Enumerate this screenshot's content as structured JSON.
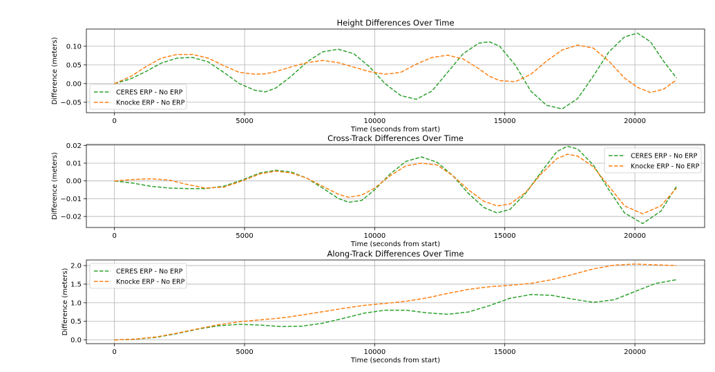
{
  "chart_data": [
    {
      "type": "line",
      "title": "Height Differences Over Time",
      "xlabel": "Time (seconds from start)",
      "ylabel": "Difference (meters)",
      "xlim": [
        -1080,
        22680
      ],
      "ylim": [
        -0.078,
        0.146
      ],
      "xticks": [
        0,
        5000,
        10000,
        15000,
        20000
      ],
      "xtick_labels": [
        "0",
        "5000",
        "10000",
        "15000",
        "20000"
      ],
      "yticks": [
        -0.05,
        0.0,
        0.05,
        0.1
      ],
      "ytick_labels": [
        "−0.05",
        "0.00",
        "0.05",
        "0.10"
      ],
      "grid": true,
      "legend_position": "lower-left",
      "x": [
        0,
        600,
        1200,
        1800,
        2400,
        3000,
        3600,
        4200,
        4800,
        5400,
        5800,
        6200,
        6800,
        7400,
        8000,
        8600,
        9200,
        9800,
        10400,
        11000,
        11600,
        12200,
        12800,
        13400,
        14000,
        14400,
        14800,
        15400,
        16000,
        16600,
        17200,
        17800,
        18400,
        19000,
        19600,
        20100,
        20600,
        21100,
        21600
      ],
      "series": [
        {
          "name": "CERES ERP - No ERP",
          "color": "#2ca02c",
          "values": [
            0.0,
            0.012,
            0.032,
            0.055,
            0.068,
            0.07,
            0.058,
            0.03,
            0.0,
            -0.018,
            -0.022,
            -0.012,
            0.02,
            0.058,
            0.085,
            0.092,
            0.08,
            0.045,
            0.0,
            -0.032,
            -0.042,
            -0.02,
            0.03,
            0.08,
            0.108,
            0.112,
            0.1,
            0.05,
            -0.02,
            -0.058,
            -0.068,
            -0.04,
            0.02,
            0.085,
            0.125,
            0.135,
            0.112,
            0.06,
            0.015
          ]
        },
        {
          "name": "Knocke ERP - No ERP",
          "color": "#ff7f0e",
          "values": [
            0.0,
            0.018,
            0.045,
            0.068,
            0.078,
            0.078,
            0.068,
            0.048,
            0.03,
            0.025,
            0.026,
            0.032,
            0.045,
            0.056,
            0.062,
            0.056,
            0.044,
            0.032,
            0.025,
            0.03,
            0.052,
            0.07,
            0.076,
            0.066,
            0.04,
            0.02,
            0.008,
            0.005,
            0.025,
            0.06,
            0.09,
            0.103,
            0.095,
            0.06,
            0.015,
            -0.01,
            -0.024,
            -0.015,
            0.01
          ]
        }
      ]
    },
    {
      "type": "line",
      "title": "Cross-Track Differences Over Time",
      "xlabel": "Time (seconds from start)",
      "ylabel": "Difference (meters)",
      "xlim": [
        -1080,
        22680
      ],
      "ylim": [
        -0.0262,
        0.0205
      ],
      "xticks": [
        0,
        5000,
        10000,
        15000,
        20000
      ],
      "xtick_labels": [
        "0",
        "5000",
        "10000",
        "15000",
        "20000"
      ],
      "yticks": [
        -0.02,
        -0.01,
        0.0,
        0.01,
        0.02
      ],
      "ytick_labels": [
        "−0.02",
        "−0.01",
        "0.00",
        "0.01",
        "0.02"
      ],
      "grid": true,
      "legend_position": "upper-right",
      "x": [
        0,
        700,
        1400,
        2100,
        2800,
        3500,
        4200,
        4900,
        5600,
        6200,
        6800,
        7400,
        8000,
        8600,
        9000,
        9500,
        10000,
        10600,
        11200,
        11800,
        12400,
        13000,
        13600,
        14200,
        14700,
        15200,
        15800,
        16400,
        17000,
        17400,
        17800,
        18400,
        19000,
        19600,
        20300,
        21000,
        21600
      ],
      "series": [
        {
          "name": "CERES ERP - No ERP",
          "color": "#2ca02c",
          "values": [
            0.0,
            -0.0012,
            -0.003,
            -0.004,
            -0.0043,
            -0.0043,
            -0.003,
            0.0005,
            0.0045,
            0.006,
            0.005,
            0.0015,
            -0.004,
            -0.0098,
            -0.012,
            -0.011,
            -0.005,
            0.004,
            0.011,
            0.0135,
            0.0105,
            0.003,
            -0.007,
            -0.015,
            -0.018,
            -0.016,
            -0.007,
            0.005,
            0.0165,
            0.0195,
            0.018,
            0.009,
            -0.005,
            -0.018,
            -0.024,
            -0.017,
            -0.003
          ]
        },
        {
          "name": "Knocke ERP - No ERP",
          "color": "#ff7f0e",
          "values": [
            0.0,
            0.0008,
            0.0012,
            0.0005,
            -0.002,
            -0.004,
            -0.0035,
            0.0,
            0.004,
            0.0055,
            0.0045,
            0.0015,
            -0.003,
            -0.0075,
            -0.0092,
            -0.008,
            -0.004,
            0.003,
            0.0085,
            0.01,
            0.009,
            0.003,
            -0.005,
            -0.0115,
            -0.014,
            -0.013,
            -0.0065,
            0.004,
            0.0125,
            0.015,
            0.014,
            0.008,
            -0.003,
            -0.014,
            -0.0185,
            -0.014,
            -0.004
          ]
        }
      ]
    },
    {
      "type": "line",
      "title": "Along-Track Differences Over Time",
      "xlabel": "Time (seconds from start)",
      "ylabel": "Difference (meters)",
      "xlim": [
        -1080,
        22680
      ],
      "ylim": [
        -0.1,
        2.15
      ],
      "xticks": [
        0,
        5000,
        10000,
        15000,
        20000
      ],
      "xtick_labels": [
        "0",
        "5000",
        "10000",
        "15000",
        "20000"
      ],
      "yticks": [
        0.0,
        0.5,
        1.0,
        1.5,
        2.0
      ],
      "ytick_labels": [
        "0.0",
        "0.5",
        "1.0",
        "1.5",
        "2.0"
      ],
      "grid": true,
      "legend_position": "upper-left",
      "x": [
        0,
        800,
        1600,
        2400,
        3200,
        4000,
        4800,
        5600,
        6400,
        7200,
        8000,
        8800,
        9600,
        10400,
        11200,
        12000,
        12800,
        13600,
        14400,
        15200,
        16000,
        16800,
        17600,
        18400,
        19200,
        20000,
        20800,
        21600
      ],
      "series": [
        {
          "name": "CERES ERP - No ERP",
          "color": "#2ca02c",
          "values": [
            0.0,
            0.02,
            0.07,
            0.17,
            0.29,
            0.38,
            0.42,
            0.4,
            0.36,
            0.37,
            0.45,
            0.58,
            0.72,
            0.8,
            0.8,
            0.73,
            0.69,
            0.75,
            0.92,
            1.12,
            1.22,
            1.2,
            1.1,
            1.01,
            1.08,
            1.3,
            1.52,
            1.62
          ]
        },
        {
          "name": "Knocke ERP - No ERP",
          "color": "#ff7f0e",
          "values": [
            0.0,
            0.02,
            0.08,
            0.18,
            0.3,
            0.41,
            0.49,
            0.54,
            0.59,
            0.67,
            0.76,
            0.85,
            0.93,
            0.98,
            1.04,
            1.13,
            1.25,
            1.36,
            1.43,
            1.47,
            1.52,
            1.62,
            1.76,
            1.91,
            2.01,
            2.04,
            2.02,
            2.0
          ]
        }
      ]
    }
  ]
}
